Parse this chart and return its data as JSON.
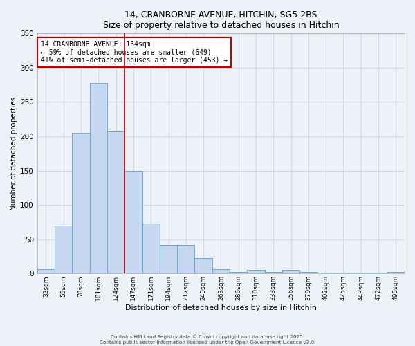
{
  "title1": "14, CRANBORNE AVENUE, HITCHIN, SG5 2BS",
  "title2": "Size of property relative to detached houses in Hitchin",
  "xlabel": "Distribution of detached houses by size in Hitchin",
  "ylabel": "Number of detached properties",
  "bar_labels": [
    "32sqm",
    "55sqm",
    "78sqm",
    "101sqm",
    "124sqm",
    "147sqm",
    "171sqm",
    "194sqm",
    "217sqm",
    "240sqm",
    "263sqm",
    "286sqm",
    "310sqm",
    "333sqm",
    "356sqm",
    "379sqm",
    "402sqm",
    "425sqm",
    "449sqm",
    "472sqm",
    "495sqm"
  ],
  "bar_values": [
    6,
    70,
    205,
    278,
    207,
    150,
    73,
    42,
    42,
    22,
    6,
    2,
    5,
    2,
    5,
    2,
    1,
    1,
    1,
    1,
    2
  ],
  "bar_color": "#c5d8f0",
  "bar_edge_color": "#6aaad4",
  "grid_color": "#d0d8e4",
  "vline_x": 4.5,
  "vline_color": "#aa0000",
  "annotation_box_text": "14 CRANBORNE AVENUE: 134sqm\n← 59% of detached houses are smaller (649)\n41% of semi-detached houses are larger (453) →",
  "annotation_box_color": "#ffffff",
  "annotation_box_edge_color": "#cc0000",
  "ylim": [
    0,
    350
  ],
  "yticks": [
    0,
    50,
    100,
    150,
    200,
    250,
    300,
    350
  ],
  "footer1": "Contains HM Land Registry data © Crown copyright and database right 2025.",
  "footer2": "Contains public sector information licensed under the Open Government Licence v3.0.",
  "bg_color": "#eef2f8"
}
